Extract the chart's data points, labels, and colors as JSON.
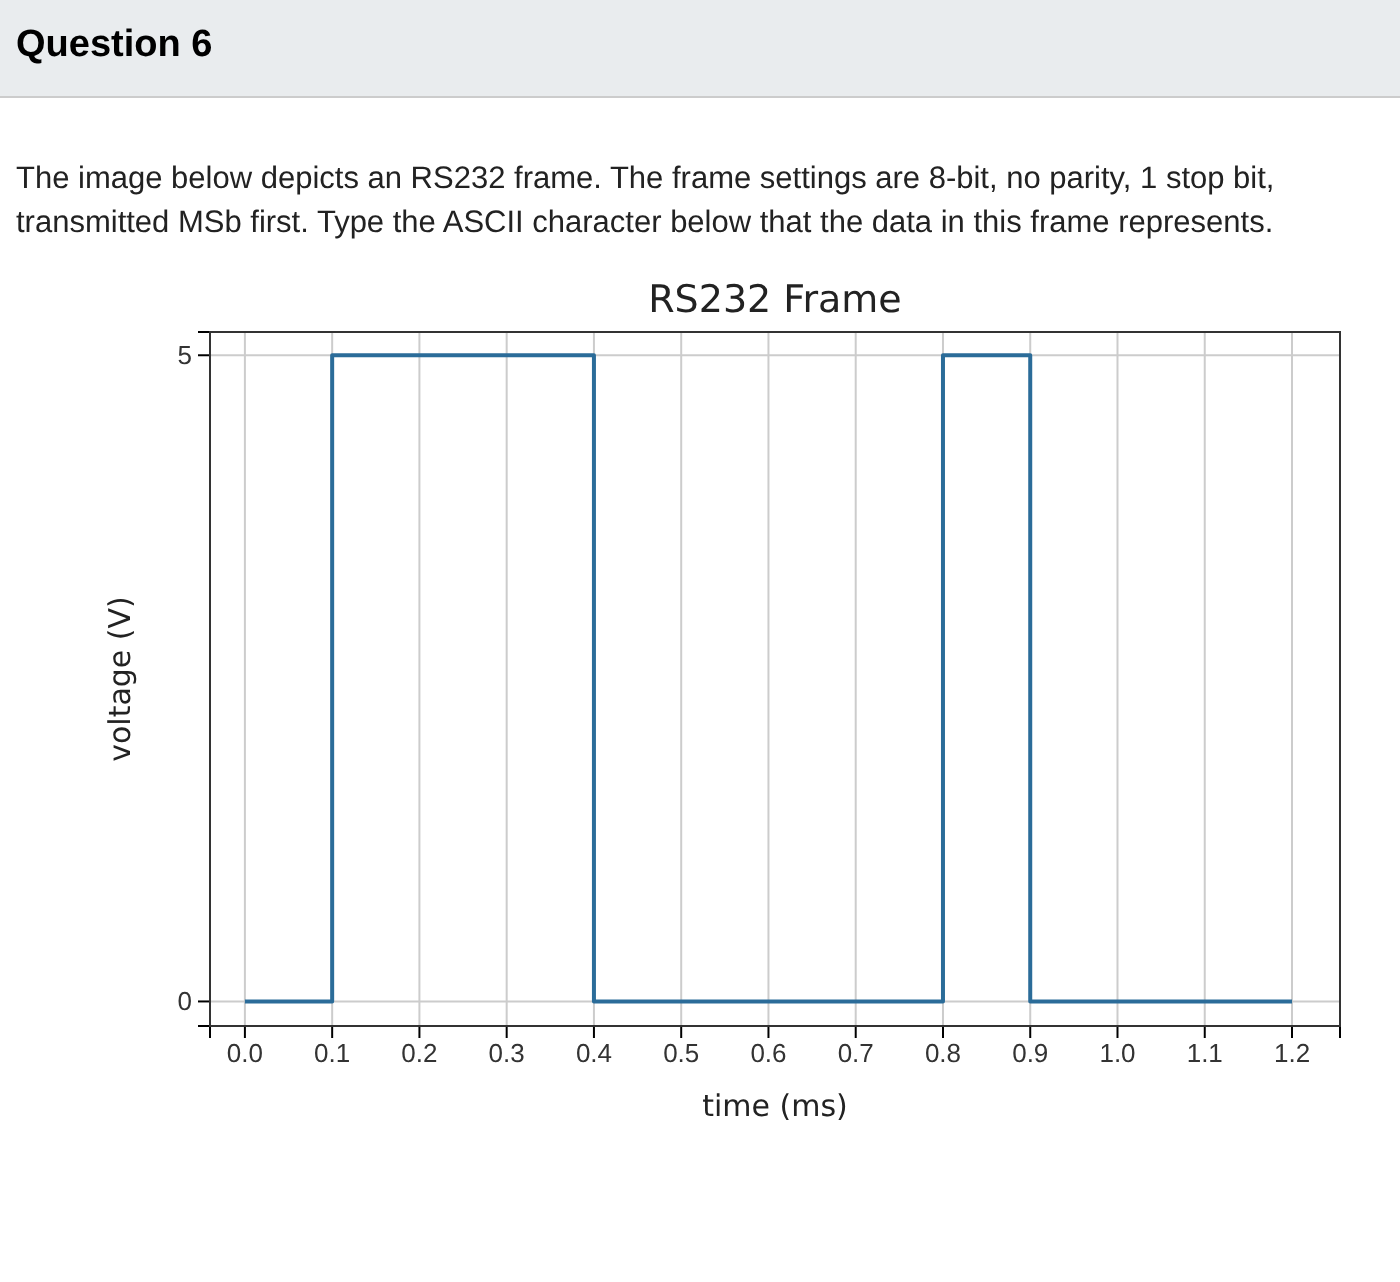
{
  "chart_data": {
    "type": "step",
    "title": "RS232 Frame",
    "xlabel": "time (ms)",
    "ylabel": "voltage (V)",
    "annotations": [
      "Question 6",
      "The image below depicts an RS232 frame. The frame settings are 8-bit, no parity, 1 stop bit, transmitted MSb first. Type the ASCII character below that the data in this frame represents."
    ],
    "x": [
      0,
      0.1,
      0.4,
      0.8,
      0.9,
      1.2
    ],
    "series": [
      {
        "color": "#2b6c99",
        "values": [
          0,
          5,
          0,
          5,
          0,
          0
        ]
      }
    ],
    "xlim": [
      -0.04,
      1.255
    ],
    "ylim": [
      -0.19,
      5.18
    ],
    "xticks": [
      {
        "value": 0,
        "label": "0.0"
      },
      {
        "value": 0.1,
        "label": "0.1"
      },
      {
        "value": 0.2,
        "label": "0.2"
      },
      {
        "value": 0.3,
        "label": "0.3"
      },
      {
        "value": 0.4,
        "label": "0.4"
      },
      {
        "value": 0.5,
        "label": "0.5"
      },
      {
        "value": 0.6,
        "label": "0.6"
      },
      {
        "value": 0.7,
        "label": "0.7"
      },
      {
        "value": 0.8,
        "label": "0.8"
      },
      {
        "value": 0.9,
        "label": "0.9"
      },
      {
        "value": 1.0,
        "label": "1.0"
      },
      {
        "value": 1.1,
        "label": "1.1"
      },
      {
        "value": 1.2,
        "label": "1.2"
      }
    ],
    "yticks": [
      0,
      5
    ],
    "grid": true,
    "marker": "none",
    "line_style": "solid"
  }
}
